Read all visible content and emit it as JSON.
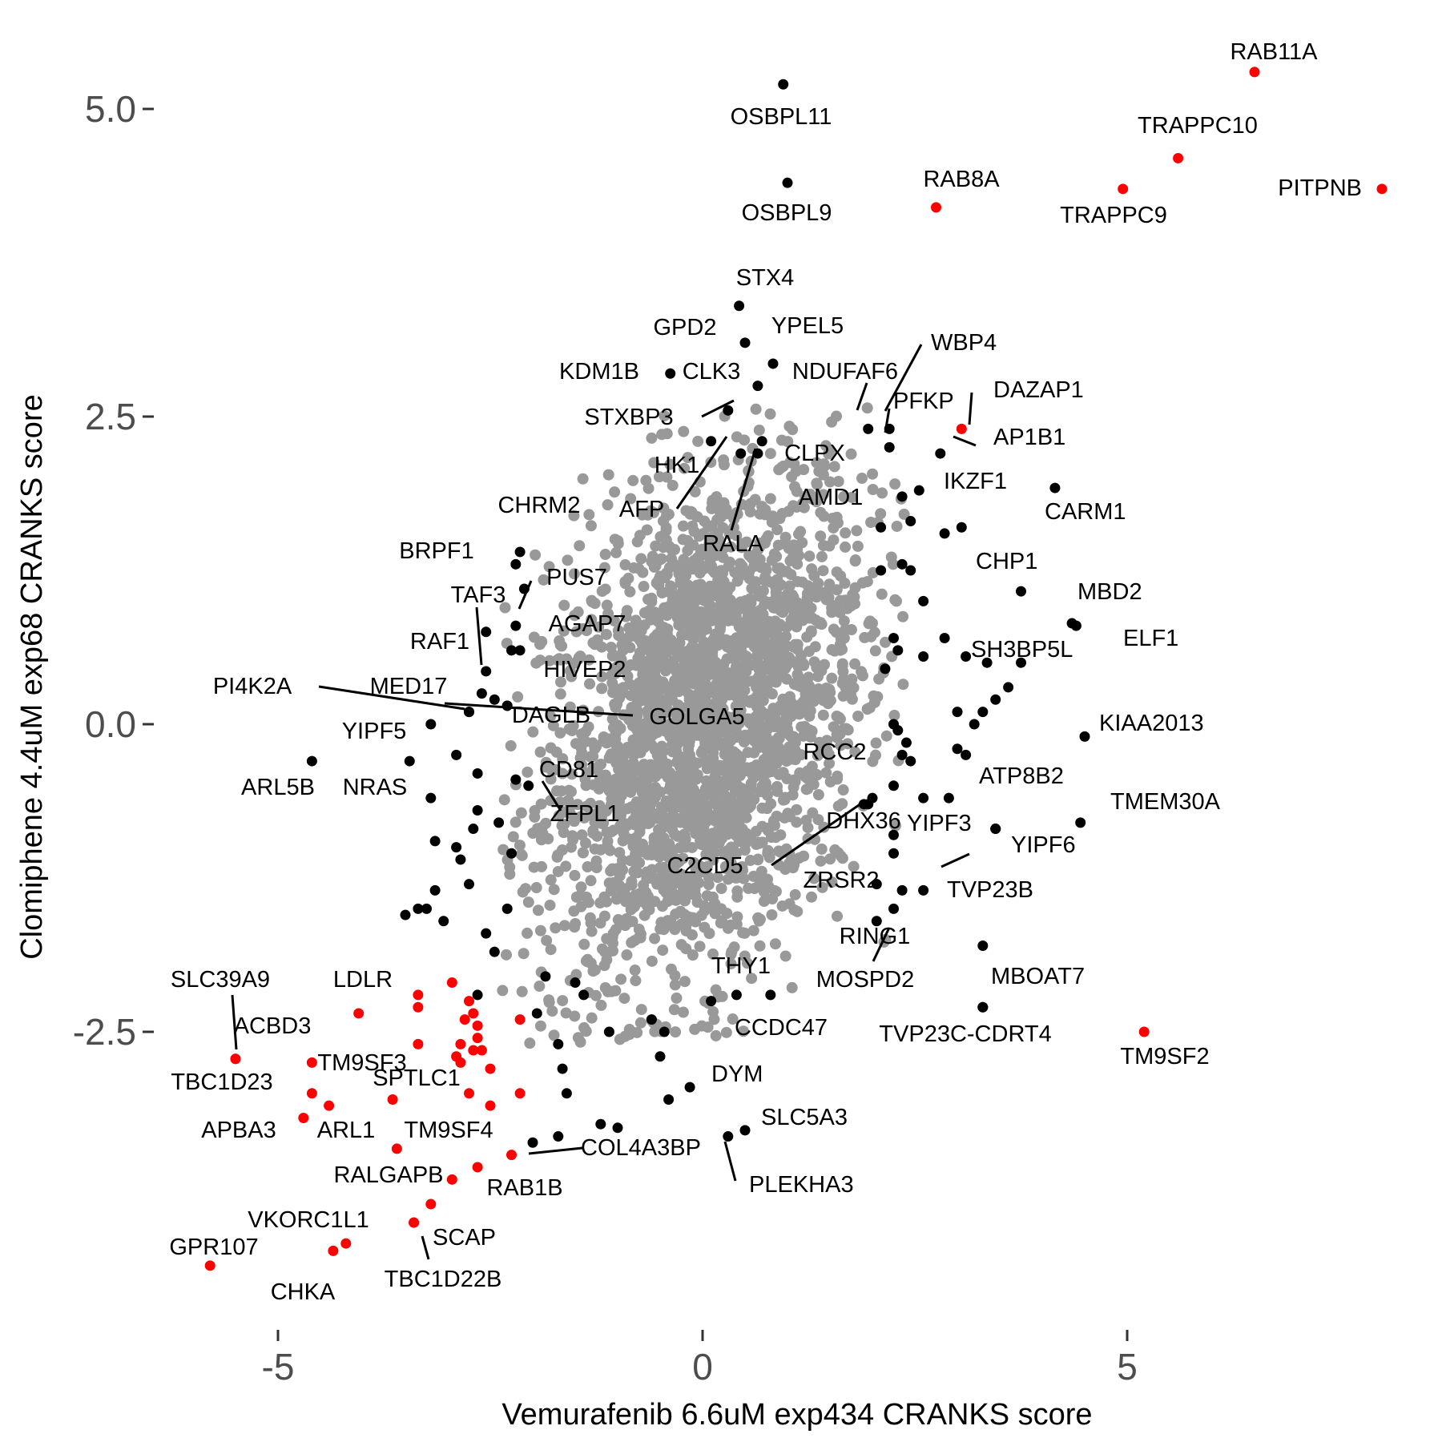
{
  "chart_data": {
    "type": "scatter",
    "title": "",
    "xlabel": "Vemurafenib 6.6uM exp434 CRANKS score",
    "ylabel": "Clomiphene 4.4uM exp68 CRANKS score",
    "xlim": [
      -6.1,
      8.3
    ],
    "ylim": [
      -4.9,
      5.5
    ],
    "x_ticks": [
      -5,
      0,
      5
    ],
    "x_tick_labels": [
      "-5",
      "0",
      "5"
    ],
    "y_ticks": [
      5.0,
      2.5,
      0.0,
      -2.5
    ],
    "y_tick_labels": [
      "5.0",
      "2.5",
      "0.0",
      "-2.5"
    ],
    "grid": false,
    "colors": {
      "background_points": "#999999",
      "hit_points": "#000000",
      "highlight_points": "#ff0000"
    },
    "background_cloud": {
      "description_free": true,
      "center": [
        0.0,
        0.0
      ],
      "sd_x": 0.95,
      "sd_y": 0.95,
      "n": 2600
    },
    "series": [
      {
        "color": "red",
        "points": [
          {
            "label": "RAB11A",
            "x": 6.5,
            "y": 5.3
          },
          {
            "label": "TRAPPC10",
            "x": 5.6,
            "y": 4.6
          },
          {
            "label": "TRAPPC9",
            "x": 4.95,
            "y": 4.35
          },
          {
            "label": "PITPNB",
            "x": 8.0,
            "y": 4.35
          },
          {
            "label": "RAB8A",
            "x": 2.75,
            "y": 4.2
          },
          {
            "label": "DAZAP1",
            "x": 3.05,
            "y": 2.4
          },
          {
            "label": "TM9SF2",
            "x": 5.2,
            "y": -2.5
          },
          {
            "label": "SLC39A9",
            "x": -5.5,
            "y": -2.72
          },
          {
            "label": "ACBD3",
            "x": -5.5,
            "y": -2.72
          },
          {
            "label": "LDLR",
            "x": -4.05,
            "y": -2.35
          },
          {
            "label": "TM9SF3",
            "x": -4.6,
            "y": -2.75
          },
          {
            "label": "TBC1D23",
            "x": -4.6,
            "y": -3.0
          },
          {
            "label": "SPTLC1",
            "x": -3.65,
            "y": -3.05
          },
          {
            "label": "APBA3",
            "x": -4.7,
            "y": -3.2
          },
          {
            "label": "ARL1",
            "x": -4.4,
            "y": -3.1
          },
          {
            "label": "TM9SF4",
            "x": -3.6,
            "y": -3.45
          },
          {
            "label": "COL4A3BP",
            "x": -2.25,
            "y": -3.5
          },
          {
            "label": "RALGAPB",
            "x": -2.95,
            "y": -3.7
          },
          {
            "label": "RAB1B",
            "x": -2.65,
            "y": -3.6
          },
          {
            "label": "SCAP",
            "x": -3.2,
            "y": -3.9
          },
          {
            "label": "VKORC1L1",
            "x": -3.4,
            "y": -4.05
          },
          {
            "label": "TBC1D22B",
            "x": -3.4,
            "y": -4.05
          },
          {
            "label": "GPR107",
            "x": -5.8,
            "y": -4.4
          },
          {
            "label": "CHKA",
            "x": -4.35,
            "y": -4.28
          },
          {
            "label": "",
            "x": -4.2,
            "y": -4.22
          },
          {
            "label": "",
            "x": -3.35,
            "y": -2.2
          },
          {
            "label": "",
            "x": -3.35,
            "y": -2.3
          },
          {
            "label": "",
            "x": -2.95,
            "y": -2.1
          },
          {
            "label": "",
            "x": -2.75,
            "y": -2.25
          },
          {
            "label": "",
            "x": -2.7,
            "y": -2.35
          },
          {
            "label": "",
            "x": -2.65,
            "y": -2.45
          },
          {
            "label": "",
            "x": -2.8,
            "y": -2.4
          },
          {
            "label": "",
            "x": -2.65,
            "y": -2.55
          },
          {
            "label": "",
            "x": -2.85,
            "y": -2.6
          },
          {
            "label": "",
            "x": -2.9,
            "y": -2.7
          },
          {
            "label": "",
            "x": -2.7,
            "y": -2.65
          },
          {
            "label": "",
            "x": -2.6,
            "y": -2.65
          },
          {
            "label": "",
            "x": -3.35,
            "y": -2.6
          },
          {
            "label": "",
            "x": -2.75,
            "y": -3.0
          },
          {
            "label": "",
            "x": -2.5,
            "y": -2.8
          },
          {
            "label": "",
            "x": -2.15,
            "y": -2.4
          },
          {
            "label": "",
            "x": -2.15,
            "y": -3.0
          },
          {
            "label": "",
            "x": -2.5,
            "y": -3.1
          },
          {
            "label": "",
            "x": -2.85,
            "y": -2.75
          }
        ]
      },
      {
        "color": "black",
        "points": [
          {
            "label": "OSBPL11",
            "x": 0.95,
            "y": 5.2
          },
          {
            "label": "OSBPL9",
            "x": 1.0,
            "y": 4.4
          },
          {
            "label": "STX4",
            "x": 0.43,
            "y": 3.4
          },
          {
            "label": "GPD2",
            "x": 0.5,
            "y": 3.1
          },
          {
            "label": "YPEL5",
            "x": 0.83,
            "y": 2.93
          },
          {
            "label": "KDM1B",
            "x": -0.38,
            "y": 2.85
          },
          {
            "label": "CLK3",
            "x": 0.65,
            "y": 2.75
          },
          {
            "label": "NDUFAF6",
            "x": 1.95,
            "y": 2.4
          },
          {
            "label": "WBP4",
            "x": 2.2,
            "y": 2.4
          },
          {
            "label": "PFKP",
            "x": 2.2,
            "y": 2.25
          },
          {
            "label": "STXBP3",
            "x": 0.3,
            "y": 2.55
          },
          {
            "label": "AP1B1",
            "x": 2.8,
            "y": 2.2
          },
          {
            "label": "HK1",
            "x": 0.1,
            "y": 2.3
          },
          {
            "label": "CLPX",
            "x": 0.7,
            "y": 2.3
          },
          {
            "label": "AFP",
            "x": 0.45,
            "y": 2.2
          },
          {
            "label": "RALA",
            "x": 0.65,
            "y": 2.2
          },
          {
            "label": "IKZF1",
            "x": 2.55,
            "y": 1.9
          },
          {
            "label": "CARM1",
            "x": 4.15,
            "y": 1.92
          },
          {
            "label": "AMD1",
            "x": 2.45,
            "y": 1.65
          },
          {
            "label": "CHRM2",
            "x": -2.15,
            "y": 1.4
          },
          {
            "label": "BRPF1",
            "x": -2.2,
            "y": 1.3
          },
          {
            "label": "CHP1",
            "x": 3.75,
            "y": 1.08
          },
          {
            "label": "PUS7",
            "x": -2.1,
            "y": 1.1
          },
          {
            "label": "MBD2",
            "x": 4.35,
            "y": 0.82
          },
          {
            "label": "ELF1",
            "x": 4.4,
            "y": 0.8
          },
          {
            "label": "TAF3",
            "x": -2.55,
            "y": 0.75
          },
          {
            "label": "AGAP7",
            "x": -2.2,
            "y": 0.8
          },
          {
            "label": "RAF1",
            "x": -2.55,
            "y": 0.43
          },
          {
            "label": "SH3BP5L",
            "x": 3.75,
            "y": 0.5
          },
          {
            "label": "HIVEP2",
            "x": -2.25,
            "y": 0.6
          },
          {
            "label": "PI4K2A",
            "x": -2.75,
            "y": 0.1
          },
          {
            "label": "MED17",
            "x": -2.75,
            "y": 0.1
          },
          {
            "label": "DAGLB",
            "x": -2.3,
            "y": 0.15
          },
          {
            "label": "GOLGA5",
            "x": -2.3,
            "y": 0.15
          },
          {
            "label": "YIPF5",
            "x": -3.2,
            "y": 0.0
          },
          {
            "label": "KIAA2013",
            "x": 4.5,
            "y": -0.1
          },
          {
            "label": "ARL5B",
            "x": -4.6,
            "y": -0.3
          },
          {
            "label": "NRAS",
            "x": -3.45,
            "y": -0.3
          },
          {
            "label": "CD81",
            "x": -2.2,
            "y": -0.45
          },
          {
            "label": "ZFPL1",
            "x": -2.05,
            "y": -0.5
          },
          {
            "label": "RCC2",
            "x": 2.25,
            "y": -0.5
          },
          {
            "label": "ATP8B2",
            "x": 2.9,
            "y": -0.6
          },
          {
            "label": "DHX36",
            "x": 1.9,
            "y": -0.65
          },
          {
            "label": "TMEM30A",
            "x": 4.45,
            "y": -0.8
          },
          {
            "label": "YIPF3",
            "x": 3.45,
            "y": -0.85
          },
          {
            "label": "YIPF6",
            "x": 3.45,
            "y": -0.85
          },
          {
            "label": "C2CD5",
            "x": 1.95,
            "y": -0.65
          },
          {
            "label": "ZRSR2",
            "x": 2.25,
            "y": -1.05
          },
          {
            "label": "TVP23B",
            "x": 2.6,
            "y": -1.35
          },
          {
            "label": "RING1",
            "x": 3.3,
            "y": -1.8
          },
          {
            "label": "MOSPD2",
            "x": 2.25,
            "y": -1.5
          },
          {
            "label": "THY1",
            "x": 0.1,
            "y": -2.25
          },
          {
            "label": "MBOAT7",
            "x": 3.3,
            "y": -2.3
          },
          {
            "label": "TVP23C-CDRT4",
            "x": 3.3,
            "y": -2.3
          },
          {
            "label": "CCDC47",
            "x": 0.4,
            "y": -2.2
          },
          {
            "label": "DYM",
            "x": -0.15,
            "y": -2.95
          },
          {
            "label": "SLC5A3",
            "x": 0.5,
            "y": -3.3
          },
          {
            "label": "PLEKHA3",
            "x": 0.3,
            "y": -3.35
          },
          {
            "label": "",
            "x": -0.4,
            "y": -3.05
          },
          {
            "label": "",
            "x": -0.45,
            "y": -2.5
          },
          {
            "label": "",
            "x": 0.8,
            "y": -2.2
          },
          {
            "label": "",
            "x": -1.2,
            "y": -3.25
          },
          {
            "label": "",
            "x": -1.0,
            "y": -3.28
          },
          {
            "label": "",
            "x": -2.0,
            "y": -3.4
          },
          {
            "label": "",
            "x": -1.7,
            "y": -3.35
          },
          {
            "label": "",
            "x": -1.6,
            "y": -3.0
          },
          {
            "label": "",
            "x": -1.65,
            "y": -2.8
          },
          {
            "label": "",
            "x": -1.7,
            "y": -2.6
          },
          {
            "label": "",
            "x": -1.95,
            "y": -2.35
          },
          {
            "label": "",
            "x": -1.85,
            "y": -2.05
          },
          {
            "label": "",
            "x": -1.5,
            "y": -2.1
          },
          {
            "label": "",
            "x": -1.4,
            "y": -2.2
          },
          {
            "label": "",
            "x": -1.1,
            "y": -2.5
          },
          {
            "label": "",
            "x": -0.5,
            "y": -2.7
          },
          {
            "label": "",
            "x": -0.6,
            "y": -2.4
          },
          {
            "label": "",
            "x": -2.45,
            "y": -1.85
          },
          {
            "label": "",
            "x": -2.55,
            "y": -1.7
          },
          {
            "label": "",
            "x": -2.65,
            "y": -2.2
          },
          {
            "label": "",
            "x": -2.3,
            "y": -1.5
          },
          {
            "label": "",
            "x": -3.05,
            "y": -1.6
          },
          {
            "label": "",
            "x": -3.5,
            "y": -1.55
          },
          {
            "label": "",
            "x": -3.25,
            "y": -1.5
          },
          {
            "label": "",
            "x": -3.35,
            "y": -1.5
          },
          {
            "label": "",
            "x": -2.9,
            "y": -1.0
          },
          {
            "label": "",
            "x": -2.7,
            "y": -0.85
          },
          {
            "label": "",
            "x": -2.65,
            "y": -0.7
          },
          {
            "label": "",
            "x": -3.2,
            "y": -0.6
          },
          {
            "label": "",
            "x": -3.15,
            "y": -0.95
          },
          {
            "label": "",
            "x": -2.85,
            "y": -1.1
          },
          {
            "label": "",
            "x": -2.75,
            "y": -1.3
          },
          {
            "label": "",
            "x": -3.15,
            "y": -1.35
          },
          {
            "label": "",
            "x": -2.4,
            "y": -0.8
          },
          {
            "label": "",
            "x": -2.25,
            "y": -1.05
          },
          {
            "label": "",
            "x": -2.65,
            "y": -0.4
          },
          {
            "label": "",
            "x": -2.9,
            "y": -0.25
          },
          {
            "label": "",
            "x": -2.6,
            "y": 0.25
          },
          {
            "label": "",
            "x": -2.45,
            "y": 0.2
          },
          {
            "label": "",
            "x": -2.15,
            "y": 0.6
          },
          {
            "label": "",
            "x": 2.1,
            "y": 1.6
          },
          {
            "label": "",
            "x": 2.35,
            "y": 1.3
          },
          {
            "label": "",
            "x": 2.1,
            "y": 1.25
          },
          {
            "label": "",
            "x": 2.45,
            "y": 1.25
          },
          {
            "label": "",
            "x": 2.6,
            "y": 1.0
          },
          {
            "label": "",
            "x": 2.85,
            "y": 1.55
          },
          {
            "label": "",
            "x": 3.05,
            "y": 1.6
          },
          {
            "label": "",
            "x": 3.1,
            "y": 0.55
          },
          {
            "label": "",
            "x": 3.35,
            "y": 0.5
          },
          {
            "label": "",
            "x": 2.85,
            "y": 0.7
          },
          {
            "label": "",
            "x": 2.6,
            "y": 0.55
          },
          {
            "label": "",
            "x": 2.3,
            "y": 0.6
          },
          {
            "label": "",
            "x": 2.25,
            "y": 0.7
          },
          {
            "label": "",
            "x": 2.15,
            "y": 0.45
          },
          {
            "label": "",
            "x": 3.6,
            "y": 0.3
          },
          {
            "label": "",
            "x": 3.45,
            "y": 0.2
          },
          {
            "label": "",
            "x": 3.0,
            "y": 0.1
          },
          {
            "label": "",
            "x": 3.2,
            "y": 0.0
          },
          {
            "label": "",
            "x": 3.3,
            "y": 0.1
          },
          {
            "label": "",
            "x": 3.0,
            "y": -0.2
          },
          {
            "label": "",
            "x": 3.1,
            "y": -0.25
          },
          {
            "label": "",
            "x": 2.4,
            "y": -0.15
          },
          {
            "label": "",
            "x": 2.3,
            "y": -0.05
          },
          {
            "label": "",
            "x": 2.25,
            "y": 0.0
          },
          {
            "label": "",
            "x": 2.45,
            "y": -0.3
          },
          {
            "label": "",
            "x": 2.35,
            "y": -0.25
          },
          {
            "label": "",
            "x": 2.05,
            "y": -1.3
          },
          {
            "label": "",
            "x": 2.35,
            "y": -1.35
          },
          {
            "label": "",
            "x": 2.05,
            "y": -1.6
          },
          {
            "label": "",
            "x": 2.25,
            "y": -0.9
          },
          {
            "label": "",
            "x": 2.0,
            "y": -0.6
          },
          {
            "label": "",
            "x": 2.6,
            "y": -0.6
          },
          {
            "label": "",
            "x": 2.35,
            "y": 1.85
          }
        ]
      }
    ]
  }
}
